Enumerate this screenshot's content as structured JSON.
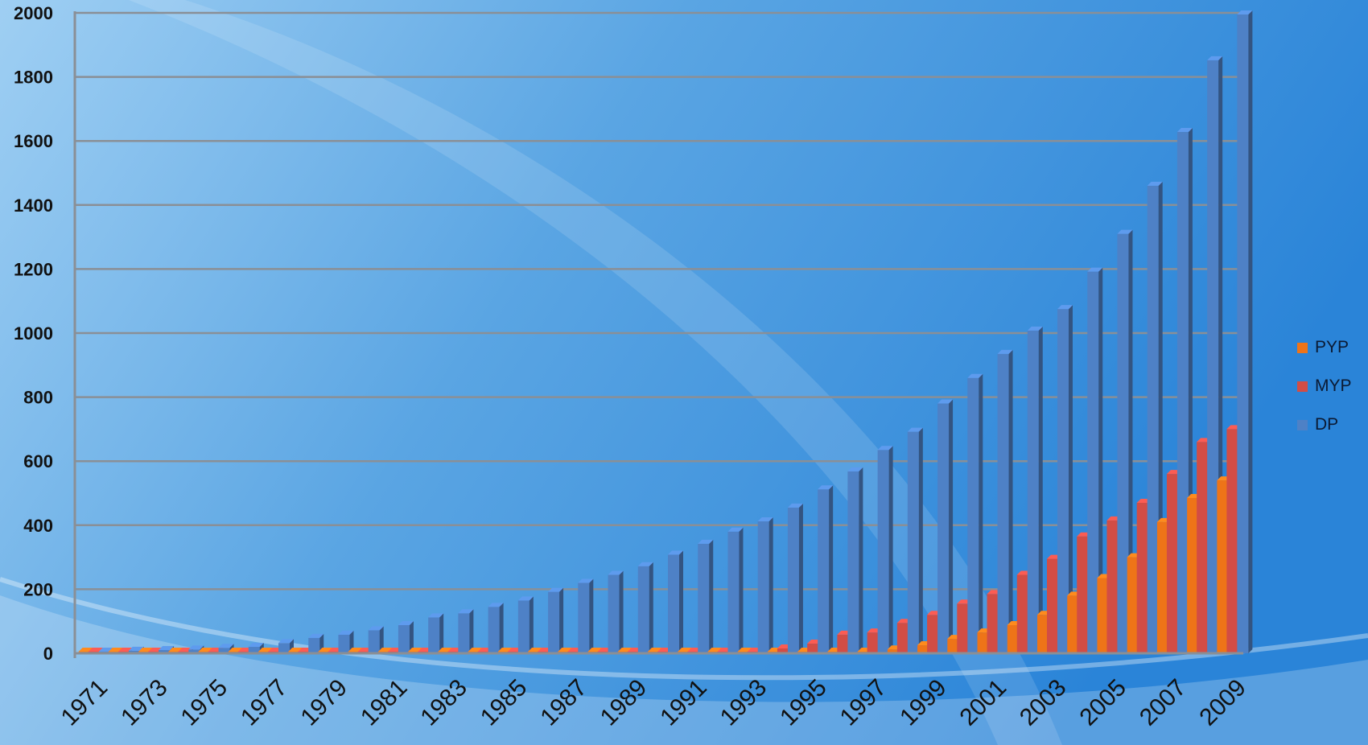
{
  "chart_data": {
    "type": "bar",
    "title": "",
    "xlabel": "",
    "ylabel": "",
    "ylim": [
      0,
      2000
    ],
    "yticks": [
      "0",
      "200",
      "400",
      "600",
      "800",
      "1000",
      "1200",
      "1400",
      "1600",
      "1800",
      "2000"
    ],
    "categories": [
      "1971",
      "1972",
      "1973",
      "1974",
      "1975",
      "1976",
      "1977",
      "1978",
      "1979",
      "1980",
      "1981",
      "1982",
      "1983",
      "1984",
      "1985",
      "1986",
      "1987",
      "1988",
      "1989",
      "1990",
      "1991",
      "1992",
      "1993",
      "1994",
      "1995",
      "1996",
      "1997",
      "1998",
      "1999",
      "2000",
      "2001",
      "2002",
      "2003",
      "2004",
      "2005",
      "2006",
      "2007",
      "2008",
      "2009"
    ],
    "x_tick_labels": [
      "1971",
      "1973",
      "1975",
      "1977",
      "1979",
      "1981",
      "1983",
      "1985",
      "1987",
      "1989",
      "1991",
      "1993",
      "1995",
      "1997",
      "1999",
      "2001",
      "2003",
      "2005",
      "2007",
      "2009"
    ],
    "grid": true,
    "legend_position": "right",
    "series": [
      {
        "name": "PYP",
        "color": "#ee7418",
        "values": [
          0,
          0,
          0,
          0,
          0,
          0,
          0,
          0,
          0,
          0,
          0,
          0,
          0,
          0,
          0,
          0,
          0,
          0,
          0,
          0,
          0,
          0,
          0,
          0,
          0,
          2,
          5,
          12,
          25,
          45,
          65,
          88,
          120,
          180,
          235,
          300,
          410,
          485,
          540
        ]
      },
      {
        "name": "MYP",
        "color": "#d24d45",
        "values": [
          0,
          0,
          0,
          0,
          0,
          0,
          0,
          0,
          0,
          0,
          0,
          0,
          0,
          0,
          0,
          0,
          0,
          0,
          0,
          0,
          0,
          2,
          5,
          15,
          30,
          58,
          65,
          95,
          120,
          155,
          185,
          245,
          295,
          365,
          415,
          470,
          560,
          660,
          700
        ]
      },
      {
        "name": "DP",
        "color": "#4e81c6",
        "values": [
          5,
          8,
          10,
          12,
          17,
          20,
          32,
          48,
          58,
          72,
          88,
          112,
          125,
          145,
          165,
          192,
          220,
          245,
          272,
          308,
          342,
          380,
          412,
          455,
          512,
          568,
          635,
          692,
          780,
          860,
          935,
          1008,
          1075,
          1192,
          1310,
          1460,
          1628,
          1852,
          1995
        ]
      }
    ]
  }
}
